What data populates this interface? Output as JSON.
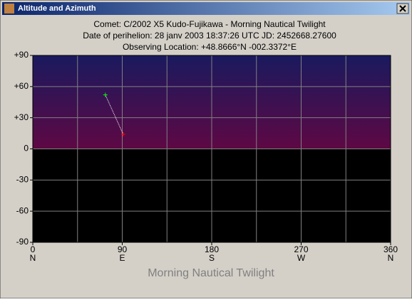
{
  "window": {
    "title": "Altitude and Azimuth"
  },
  "chart_data": {
    "type": "line",
    "title_lines": [
      "Comet: C/2002 X5 Kudo-Fujikawa - Morning Nautical Twilight",
      "Date of perihelion: 28 janv 2003 18:37:26 UTC  JD: 2452668.27600",
      "Observing Location: +48.8666°N  -002.3372°E"
    ],
    "x_label": "Morning Nautical Twilight",
    "xlim": [
      0,
      360
    ],
    "xticks": [
      0,
      90,
      180,
      270,
      360
    ],
    "minor_xticks": [
      45,
      135,
      225,
      315
    ],
    "x_directions": [
      "N",
      "E",
      "S",
      "W",
      "N"
    ],
    "ylim": [
      -90,
      90
    ],
    "yticks": [
      {
        "value": 90,
        "label": "+90"
      },
      {
        "value": 60,
        "label": "+60"
      },
      {
        "value": 30,
        "label": "+30"
      },
      0,
      -30,
      -60,
      -90
    ],
    "grid": true,
    "sky_colors": [
      "#1a1a5e",
      "#5e0844"
    ],
    "ground_color": "#000000",
    "series": [
      {
        "x": [
          73,
          91
        ],
        "values": [
          52,
          14
        ],
        "color": "#ffffff",
        "start_color": "#00ff00",
        "end_color": "#ff0000"
      }
    ]
  }
}
